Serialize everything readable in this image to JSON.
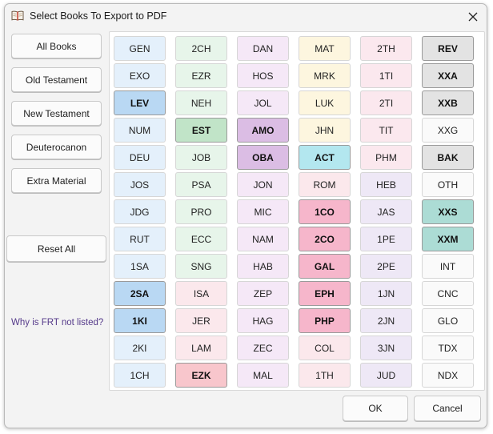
{
  "window": {
    "title": "Select Books To Export to PDF"
  },
  "sidebar": {
    "buttons": [
      {
        "label": "All Books",
        "name": "all-books-button"
      },
      {
        "label": "Old Testament",
        "name": "old-testament-button"
      },
      {
        "label": "New Testament",
        "name": "new-testament-button"
      },
      {
        "label": "Deuterocanon",
        "name": "deuterocanon-button"
      },
      {
        "label": "Extra Material",
        "name": "extra-material-button"
      }
    ],
    "reset_label": "Reset All",
    "frt_link": "Why is FRT not listed?"
  },
  "footer": {
    "ok_label": "OK",
    "cancel_label": "Cancel"
  },
  "columns": [
    {
      "color": "#e4f0fb",
      "selected_color": "#b9d8f3",
      "books": [
        {
          "code": "GEN"
        },
        {
          "code": "EXO"
        },
        {
          "code": "LEV",
          "selected": true
        },
        {
          "code": "NUM"
        },
        {
          "code": "DEU"
        },
        {
          "code": "JOS"
        },
        {
          "code": "JDG"
        },
        {
          "code": "RUT"
        },
        {
          "code": "1SA"
        },
        {
          "code": "2SA",
          "selected": true
        },
        {
          "code": "1KI",
          "selected": true
        },
        {
          "code": "2KI"
        },
        {
          "code": "1CH"
        }
      ]
    },
    {
      "color": "#e7f5ea",
      "selected_color": "#c1e4c8",
      "books": [
        {
          "code": "2CH"
        },
        {
          "code": "EZR"
        },
        {
          "code": "NEH"
        },
        {
          "code": "EST",
          "selected": true
        },
        {
          "code": "JOB"
        },
        {
          "code": "PSA"
        },
        {
          "code": "PRO"
        },
        {
          "code": "ECC"
        },
        {
          "code": "SNG"
        },
        {
          "code": "ISA"
        },
        {
          "code": "JER"
        },
        {
          "code": "LAM"
        },
        {
          "code": "EZK",
          "selected": true
        }
      ]
    },
    {
      "color": "#f5e8f7",
      "selected_color": "#dbbde4",
      "books": [
        {
          "code": "DAN"
        },
        {
          "code": "HOS"
        },
        {
          "code": "JOL"
        },
        {
          "code": "AMO",
          "selected": true
        },
        {
          "code": "OBA",
          "selected": true
        },
        {
          "code": "JON"
        },
        {
          "code": "MIC"
        },
        {
          "code": "NAM"
        },
        {
          "code": "HAB"
        },
        {
          "code": "ZEP"
        },
        {
          "code": "HAG"
        },
        {
          "code": "ZEC"
        },
        {
          "code": "MAL"
        }
      ]
    },
    {
      "color": "#fdf6df",
      "selected_color": "#b3e7ef",
      "books": [
        {
          "code": "MAT"
        },
        {
          "code": "MRK"
        },
        {
          "code": "LUK"
        },
        {
          "code": "JHN"
        },
        {
          "code": "ACT",
          "selected": true
        },
        {
          "code": "ROM"
        },
        {
          "code": "1CO",
          "selected": true
        },
        {
          "code": "2CO",
          "selected": true
        },
        {
          "code": "GAL",
          "selected": true
        },
        {
          "code": "EPH",
          "selected": true
        },
        {
          "code": "PHP",
          "selected": true
        },
        {
          "code": "COL"
        },
        {
          "code": "1TH"
        }
      ]
    },
    {
      "color": "#fbe8ee",
      "selected_color": "#f3b9cc",
      "books": [
        {
          "code": "2TH"
        },
        {
          "code": "1TI"
        },
        {
          "code": "2TI"
        },
        {
          "code": "TIT"
        },
        {
          "code": "PHM"
        },
        {
          "code": "HEB"
        },
        {
          "code": "JAS"
        },
        {
          "code": "1PE"
        },
        {
          "code": "2PE"
        },
        {
          "code": "1JN"
        },
        {
          "code": "2JN"
        },
        {
          "code": "3JN"
        },
        {
          "code": "JUD"
        }
      ]
    },
    {
      "color": "#fafafa",
      "selected_color": "#e3e3e3",
      "books": [
        {
          "code": "REV",
          "selected": true
        },
        {
          "code": "XXA",
          "selected": true
        },
        {
          "code": "XXB",
          "selected": true
        },
        {
          "code": "XXG"
        },
        {
          "code": "BAK",
          "selected": true
        },
        {
          "code": "OTH"
        },
        {
          "code": "XXS",
          "selected": true
        },
        {
          "code": "XXM",
          "selected": true
        },
        {
          "code": "INT"
        },
        {
          "code": "CNC"
        },
        {
          "code": "GLO"
        },
        {
          "code": "TDX"
        },
        {
          "code": "NDX"
        }
      ]
    }
  ],
  "colors": {
    "col4_selected_pink": "#f6b6cb",
    "col5_selected_teal": "#a9ddd6",
    "col3_blank_pink": "#fbe8ec",
    "col2_selected_pink": "#f8c6cc",
    "lev_selected": "#bad7f2",
    "xxs_xxm": "#acdcd5"
  }
}
